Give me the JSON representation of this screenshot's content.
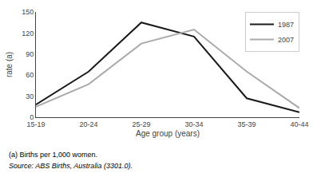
{
  "chart_data": {
    "type": "line",
    "categories": [
      "15-19",
      "20-24",
      "25-29",
      "30-34",
      "35-39",
      "40-44"
    ],
    "series": [
      {
        "name": "1987",
        "color": "#1a1a1a",
        "values": [
          18,
          65,
          135,
          115,
          27,
          7
        ]
      },
      {
        "name": "2007",
        "color": "#aaaaaa",
        "values": [
          15,
          47,
          105,
          125,
          65,
          13
        ]
      }
    ],
    "xlabel": "Age group (years)",
    "ylabel": "rate (a)",
    "ylim": [
      0,
      150
    ],
    "yticks": [
      0,
      30,
      60,
      90,
      120,
      150
    ],
    "grid": false,
    "legend": "upper right",
    "annotations": [
      "(a) Births per 1,000 women.",
      "Source: ABS Births, Australia (3301.0)."
    ]
  }
}
